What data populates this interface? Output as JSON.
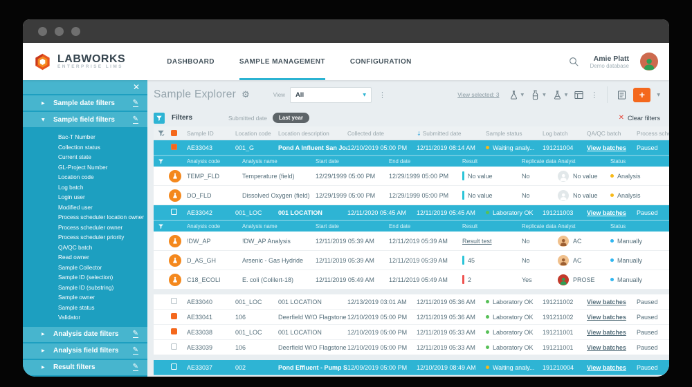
{
  "palette": {
    "teal_selected": "#2eb4d4",
    "sidebar": "#1d9fc0",
    "sidebar_light": "#47b5ce",
    "accent_orange": "#f4681d",
    "status_yellow": "#f7b918",
    "status_green": "#57c057",
    "status_blue": "#2fb6f0",
    "bar_teal": "#2bc4d8",
    "bar_red": "#ef5350",
    "chip_dark": "#5d6468"
  },
  "header": {
    "logo_title": "LABWORKS",
    "logo_subtitle": "ENTERPRISE LIMS",
    "nav": [
      {
        "label": "DASHBOARD",
        "active": false
      },
      {
        "label": "SAMPLE MANAGEMENT",
        "active": true
      },
      {
        "label": "CONFIGURATION",
        "active": false
      }
    ],
    "user_name": "Amie Platt",
    "user_database": "Demo database",
    "icons": [
      "search-icon",
      "user-avatar"
    ]
  },
  "sidebar": {
    "close_icon": "✕",
    "sections": [
      {
        "label": "Sample date filters",
        "expanded": false
      },
      {
        "label": "Sample field filters",
        "expanded": true,
        "items": [
          "Bac-T Number",
          "Collection status",
          "Current state",
          "GL-Project Number",
          "Location code",
          "Log batch",
          "Login user",
          "Modified user",
          "Process scheduler location owner",
          "Process scheduler owner",
          "Process scheduler priority",
          "QA/QC batch",
          "Read owner",
          "Sample Collector",
          "Sample ID (selection)",
          "Sample ID (substring)",
          "Sample owner",
          "Sample status",
          "Validator"
        ]
      },
      {
        "label": "Analysis date filters",
        "expanded": false
      },
      {
        "label": "Analysis field filters",
        "expanded": false
      },
      {
        "label": "Result filters",
        "expanded": false
      }
    ]
  },
  "explorer": {
    "title": "Sample Explorer",
    "view_label": "View",
    "view_value": "All",
    "view_selected": "View selected: 3",
    "toolbar_icons": [
      "flask-icon",
      "bottle-icon",
      "flask-batch-icon",
      "card-view-icon",
      "kebab-icon",
      "report-icon",
      "add-button"
    ],
    "add_label": "+"
  },
  "filters_bar": {
    "title": "Filters",
    "chip_label": "Submitted date",
    "chip_value": "Last year",
    "clear_label": "Clear filters"
  },
  "table": {
    "columns": [
      "Sample ID",
      "Location code",
      "Location description",
      "Collected date",
      "Submitted date",
      "Sample status",
      "Log batch",
      "QA/QC batch",
      "Process scheduler"
    ],
    "sorted_column": "Submitted date",
    "sub_columns": [
      "Analysis code",
      "Analysis name",
      "Start date",
      "End date",
      "Result",
      "Replicate data",
      "Analyst",
      "Status"
    ],
    "rows": [
      {
        "id": "AE33043",
        "checkbox": "checked",
        "selected": true,
        "location_code": "001_G",
        "location_description": "Pond A Influent San Joaq...",
        "collected": "12/10/2019 05:00 PM",
        "submitted": "12/11/2019 08:14 AM",
        "status": {
          "label": "Waiting analy...",
          "color": "yellow"
        },
        "log_batch": "191211004",
        "qaqc_link": "View batches",
        "scheduler": "Paused",
        "analyses": [
          {
            "code": "TEMP_FLD",
            "name": "Temperature (field)",
            "start": "12/29/1999 05:00 PM",
            "end": "12/29/1999 05:00 PM",
            "result": {
              "text": "No value",
              "bar": "teal"
            },
            "replicate": "No",
            "analyst": {
              "label": "No value",
              "avatar": "gray"
            },
            "status": {
              "label": "Analysis",
              "color": "yellow"
            }
          },
          {
            "code": "DO_FLD",
            "name": "Dissolved Oxygen (field)",
            "start": "12/29/1999 05:00 PM",
            "end": "12/29/1999 05:00 PM",
            "result": {
              "text": "No value",
              "bar": "teal"
            },
            "replicate": "No",
            "analyst": {
              "label": "No value",
              "avatar": "gray"
            },
            "status": {
              "label": "Analysis",
              "color": "yellow"
            }
          }
        ]
      },
      {
        "id": "AE33042",
        "checkbox": "unchecked",
        "selected": true,
        "location_code": "001_LOC",
        "location_description": "001 LOCATION",
        "collected": "12/11/2020 05:45 AM",
        "submitted": "12/11/2019 05:45 AM",
        "status": {
          "label": "Laboratory OK",
          "color": "green"
        },
        "log_batch": "191211003",
        "qaqc_link": "View batches",
        "scheduler": "Paused",
        "analyses": [
          {
            "code": "!DW_AP",
            "name": "!DW_AP Analysis",
            "start": "12/11/2019 05:39 AM",
            "end": "12/11/2019 05:39 AM",
            "result": {
              "text": "Result test",
              "link": true
            },
            "replicate": "No",
            "analyst": {
              "label": "AC",
              "avatar": "tan"
            },
            "status": {
              "label": "Manually",
              "color": "blue"
            }
          },
          {
            "code": "D_AS_GH",
            "name": "Arsenic - Gas Hydride",
            "start": "12/11/2019 05:39 AM",
            "end": "12/11/2019 05:39 AM",
            "result": {
              "text": "45",
              "bar": "teal"
            },
            "replicate": "No",
            "analyst": {
              "label": "AC",
              "avatar": "tan"
            },
            "status": {
              "label": "Manually",
              "color": "blue"
            }
          },
          {
            "code": "C18_ECOLI",
            "name": "E. coli (Colilert-18)",
            "start": "12/11/2019 05:49 AM",
            "end": "12/11/2019 05:49 AM",
            "result": {
              "text": "2",
              "bar": "red"
            },
            "replicate": "Yes",
            "analyst": {
              "label": "PROSE",
              "avatar": "red"
            },
            "status": {
              "label": "Manually",
              "color": "blue"
            }
          }
        ]
      },
      {
        "id": "AE33040",
        "gap_before": true,
        "checkbox": "unchecked",
        "selected": false,
        "location_code": "001_LOC",
        "location_description": "001 LOCATION",
        "collected": "12/13/2019 03:01 AM",
        "submitted": "12/11/2019 05:36 AM",
        "status": {
          "label": "Laboratory OK",
          "color": "green"
        },
        "log_batch": "191211002",
        "qaqc_link": "View batches",
        "scheduler": "Paused"
      },
      {
        "id": "AE33041",
        "checkbox": "checked",
        "selected": false,
        "location_code": "106",
        "location_description": "Deerfield W/O Flagstone",
        "collected": "12/10/2019 05:00 PM",
        "submitted": "12/11/2019 05:36 AM",
        "status": {
          "label": "Laboratory OK",
          "color": "green"
        },
        "log_batch": "191211002",
        "qaqc_link": "View batches",
        "scheduler": "Paused"
      },
      {
        "id": "AE33038",
        "checkbox": "checked",
        "selected": false,
        "location_code": "001_LOC",
        "location_description": "001 LOCATION",
        "collected": "12/10/2019 05:00 PM",
        "submitted": "12/11/2019 05:33 AM",
        "status": {
          "label": "Laboratory OK",
          "color": "green"
        },
        "log_batch": "191211001",
        "qaqc_link": "View batches",
        "scheduler": "Paused"
      },
      {
        "id": "AE33039",
        "checkbox": "unchecked",
        "selected": false,
        "location_code": "106",
        "location_description": "Deerfield W/O Flagstone",
        "collected": "12/10/2019 05:00 PM",
        "submitted": "12/11/2019 05:33 AM",
        "status": {
          "label": "Laboratory OK",
          "color": "green"
        },
        "log_batch": "191211001",
        "qaqc_link": "View batches",
        "scheduler": "Paused"
      },
      {
        "id": "AE33037",
        "gap_before": true,
        "checkbox": "unchecked",
        "selected": true,
        "location_code": "002",
        "location_description": "Pond Effluent - Pump Stat...",
        "collected": "12/09/2019 05:00 PM",
        "submitted": "12/10/2019 08:49 AM",
        "status": {
          "label": "Waiting analy...",
          "color": "yellow"
        },
        "log_batch": "191210004",
        "qaqc_link": "View batches",
        "scheduler": "Paused"
      }
    ]
  }
}
